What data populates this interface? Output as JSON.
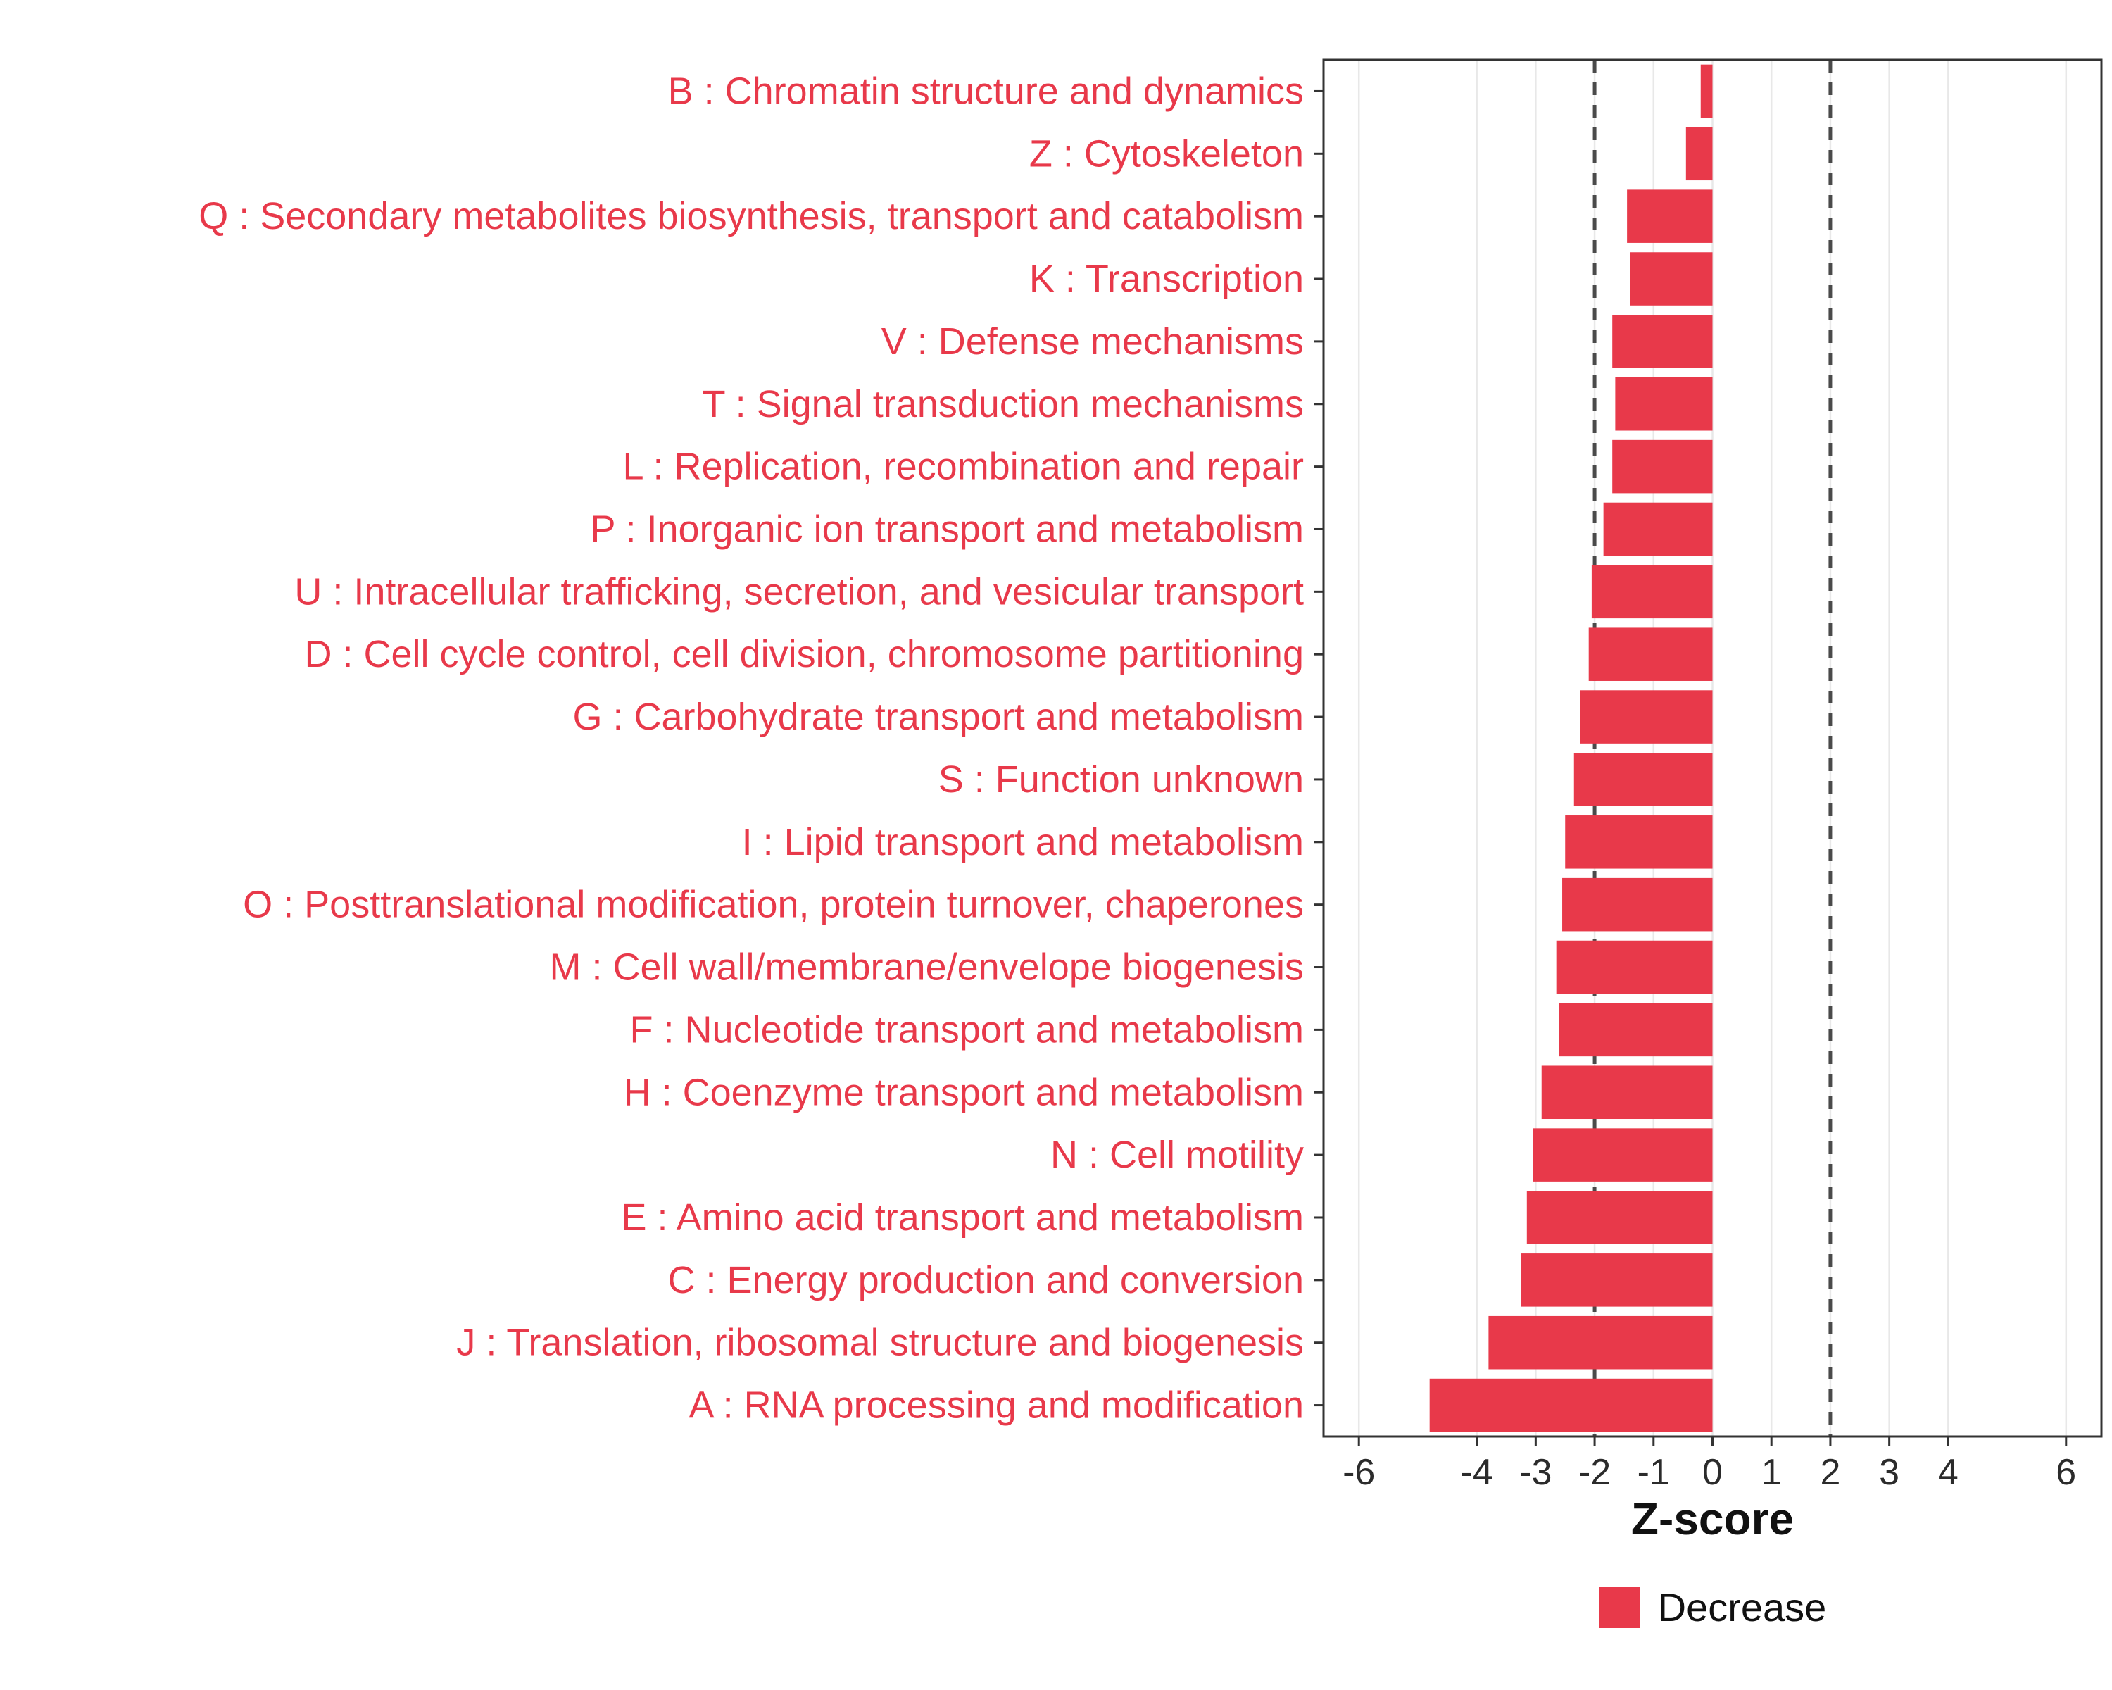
{
  "chart_data": {
    "type": "bar",
    "orientation": "horizontal",
    "title": "",
    "xlabel": "Z-score",
    "ylabel": "",
    "xlim": [
      -6.6,
      6.6
    ],
    "x_ticks": [
      -6,
      -4,
      -3,
      -2,
      -1,
      0,
      1,
      2,
      3,
      4,
      6
    ],
    "reference_lines": [
      -2,
      2
    ],
    "grid": true,
    "legend_position": "bottom",
    "categories": [
      "B : Chromatin structure and dynamics",
      "Z : Cytoskeleton",
      "Q : Secondary metabolites biosynthesis, transport and catabolism",
      "K : Transcription",
      "V : Defense mechanisms",
      "T : Signal transduction mechanisms",
      "L : Replication, recombination and repair",
      "P : Inorganic ion transport and metabolism",
      "U : Intracellular trafficking, secretion, and vesicular transport",
      "D : Cell cycle control, cell division, chromosome partitioning",
      "G : Carbohydrate transport and metabolism",
      "S : Function unknown",
      "I : Lipid transport and metabolism",
      "O : Posttranslational modification, protein turnover, chaperones",
      "M : Cell wall/membrane/envelope biogenesis",
      "F : Nucleotide transport and metabolism",
      "H : Coenzyme transport and metabolism",
      "N : Cell motility",
      "E : Amino acid transport and metabolism",
      "C : Energy production and conversion",
      "J : Translation, ribosomal structure and biogenesis",
      "A : RNA processing and modification"
    ],
    "values": [
      -0.2,
      -0.45,
      -1.45,
      -1.4,
      -1.7,
      -1.65,
      -1.7,
      -1.85,
      -2.05,
      -2.1,
      -2.25,
      -2.35,
      -2.5,
      -2.55,
      -2.65,
      -2.6,
      -2.9,
      -3.05,
      -3.15,
      -3.25,
      -3.8,
      -4.8
    ],
    "legend": [
      {
        "label": "Decrease",
        "color": "#E8394A"
      }
    ],
    "colors": {
      "bar": "#E8394A",
      "category_label": "#E8394A",
      "tick_label": "#2b2b2b",
      "dashed_line": "#4a4a4a",
      "grid_line": "#e8e8e8",
      "panel_border": "#333333"
    }
  }
}
